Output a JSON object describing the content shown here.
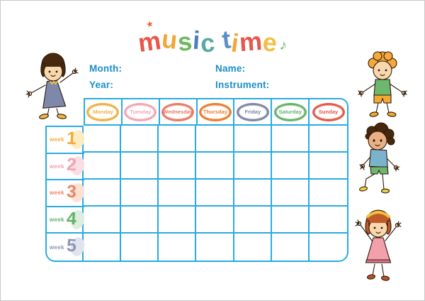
{
  "title": {
    "text": "music time",
    "letters": [
      {
        "char": "m",
        "color": "#e8564a"
      },
      {
        "char": "u",
        "color": "#f2a73b"
      },
      {
        "char": "s",
        "color": "#6db85c"
      },
      {
        "char": "i",
        "color": "#4a7fc0"
      },
      {
        "char": "c",
        "color": "#56aaa2"
      },
      {
        "char": " ",
        "color": ""
      },
      {
        "char": "t",
        "color": "#5b8fc9"
      },
      {
        "char": "i",
        "color": "#f2a73b"
      },
      {
        "char": "m",
        "color": "#e8564a"
      },
      {
        "char": "e",
        "color": "#f0c048"
      }
    ],
    "star_icon": "★",
    "star_color": "#e8643a",
    "note_icon": "♪",
    "note_color": "#6cb86e"
  },
  "form": {
    "label_color": "#1a8ec9",
    "fields": [
      {
        "label": "Month:",
        "value": ""
      },
      {
        "label": "Year:",
        "value": ""
      },
      {
        "label": "Name:",
        "value": ""
      },
      {
        "label": "Instrument:",
        "value": ""
      }
    ]
  },
  "table": {
    "grid_color": "#29abe2",
    "columns": 7,
    "rows": 5,
    "days": [
      {
        "label": "Monday",
        "color": "#efb144"
      },
      {
        "label": "Tuesday",
        "color": "#f2a6b2"
      },
      {
        "label": "Wednesday",
        "color": "#e87a64"
      },
      {
        "label": "Thursday",
        "color": "#ee7d2e"
      },
      {
        "label": "Friday",
        "color": "#7d87a9"
      },
      {
        "label": "Saturday",
        "color": "#67b36b"
      },
      {
        "label": "Sunday",
        "color": "#e25948"
      }
    ],
    "weeks": [
      {
        "label": "week",
        "number": "1",
        "color": "#f3ab3c",
        "bg": "#fcecc0"
      },
      {
        "label": "week",
        "number": "2",
        "color": "#f0a3b1",
        "bg": "#fadee4"
      },
      {
        "label": "week",
        "number": "3",
        "color": "#ee8663",
        "bg": "#fbe0d4"
      },
      {
        "label": "week",
        "number": "4",
        "color": "#62b369",
        "bg": "#dceedd"
      },
      {
        "label": "week",
        "number": "5",
        "color": "#8e96b6",
        "bg": "#e1e4ef"
      }
    ]
  },
  "illustrations": [
    {
      "name": "girl-dark-bob-blue-dress",
      "position": "top-left"
    },
    {
      "name": "boy-orange-hair-green-shirt",
      "position": "top-right"
    },
    {
      "name": "boy-brown-curls-blue-shirt",
      "position": "middle-right"
    },
    {
      "name": "girl-auburn-hair-pink-dress",
      "position": "bottom-right"
    }
  ]
}
